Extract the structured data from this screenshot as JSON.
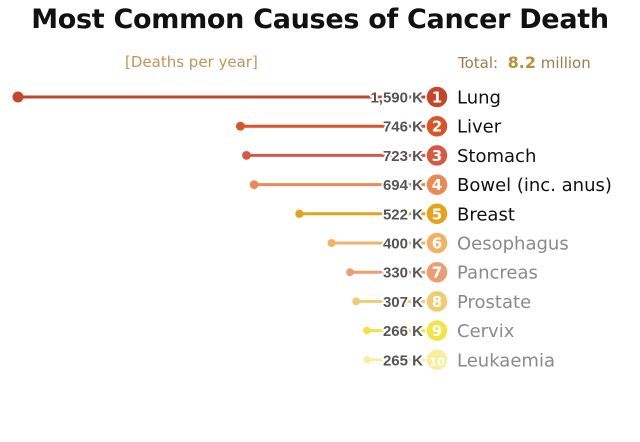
{
  "chart_data": {
    "type": "bar",
    "title": "Most Common Causes of Cancer Death",
    "subtitle": "[Deaths per year]",
    "total": {
      "label": "Total:",
      "value": "8.2",
      "unit": "million"
    },
    "categories": [
      "Lung",
      "Liver",
      "Stomach",
      "Bowel (inc. anus)",
      "Breast",
      "Oesophagus",
      "Pancreas",
      "Prostate",
      "Cervix",
      "Leukaemia"
    ],
    "ranks": [
      "1",
      "2",
      "3",
      "4",
      "5",
      "6",
      "7",
      "8",
      "9",
      "10"
    ],
    "values": [
      1590,
      746,
      723,
      694,
      522,
      400,
      330,
      307,
      266,
      265
    ],
    "value_labels": [
      "1,590 K",
      "746 K",
      "723 K",
      "694 K",
      "522 K",
      "400 K",
      "330 K",
      "307 K",
      "266 K",
      "265 K"
    ],
    "unit": "thousand deaths per year",
    "colors": [
      "#c2472d",
      "#d9542a",
      "#d65a43",
      "#ea8a55",
      "#e5a21e",
      "#f1b266",
      "#eb9e72",
      "#f2ca72",
      "#f1e447",
      "#f7ef9f"
    ],
    "label_colors": [
      "#111111",
      "#111111",
      "#111111",
      "#111111",
      "#111111",
      "#8a8a8a",
      "#8a8a8a",
      "#8a8a8a",
      "#8a8a8a",
      "#8a8a8a"
    ],
    "value_label_color": "#555555"
  }
}
